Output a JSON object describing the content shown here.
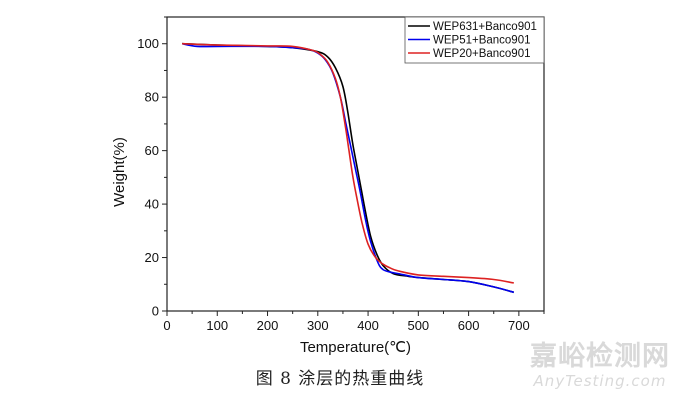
{
  "chart_data": {
    "type": "line",
    "title": "",
    "xlabel": "Temperature(℃)",
    "ylabel": "Weight(%)",
    "xlim": [
      0,
      750
    ],
    "ylim": [
      0,
      110
    ],
    "xticks": [
      0,
      100,
      200,
      300,
      400,
      500,
      600,
      700
    ],
    "yticks": [
      0,
      20,
      40,
      60,
      80,
      100
    ],
    "grid": false,
    "legend_position": "top-right",
    "series": [
      {
        "name": "WEP631+Banco901",
        "color": "#000000",
        "x": [
          30,
          100,
          200,
          250,
          300,
          320,
          335,
          350,
          360,
          370,
          380,
          392,
          405,
          418,
          430,
          450,
          480,
          500,
          550,
          600,
          650,
          690
        ],
        "y": [
          100,
          99.5,
          99,
          98.5,
          97,
          95,
          91,
          84,
          74,
          62,
          52,
          40,
          28,
          21,
          17,
          14,
          13,
          12.5,
          11.8,
          11,
          9,
          7
        ]
      },
      {
        "name": "WEP51+Banco901",
        "color": "#0000ee",
        "x": [
          30,
          60,
          100,
          200,
          250,
          280,
          300,
          315,
          330,
          345,
          355,
          365,
          375,
          385,
          395,
          405,
          420,
          430,
          445,
          460,
          500,
          550,
          600,
          650,
          690
        ],
        "y": [
          100,
          99,
          99,
          99,
          98.5,
          98,
          96.5,
          94,
          89,
          80,
          71,
          62,
          53,
          44,
          34,
          26,
          18,
          15.5,
          14.5,
          14,
          12.5,
          11.8,
          11,
          9,
          7
        ]
      },
      {
        "name": "WEP20+Banco901",
        "color": "#dd2222",
        "x": [
          30,
          100,
          200,
          250,
          290,
          305,
          320,
          335,
          345,
          355,
          362,
          370,
          378,
          388,
          400,
          415,
          430,
          445,
          460,
          500,
          550,
          600,
          650,
          690
        ],
        "y": [
          100,
          99.5,
          99.2,
          99,
          97.5,
          96,
          93,
          87,
          80,
          69,
          60,
          50,
          42,
          33,
          25,
          20,
          17.5,
          16,
          15,
          13.5,
          13,
          12.5,
          11.8,
          10.5
        ]
      }
    ]
  },
  "caption": "图 8  涂层的热重曲线",
  "watermark": {
    "cn": "嘉峪检测网",
    "en": "AnyTesting.com"
  }
}
